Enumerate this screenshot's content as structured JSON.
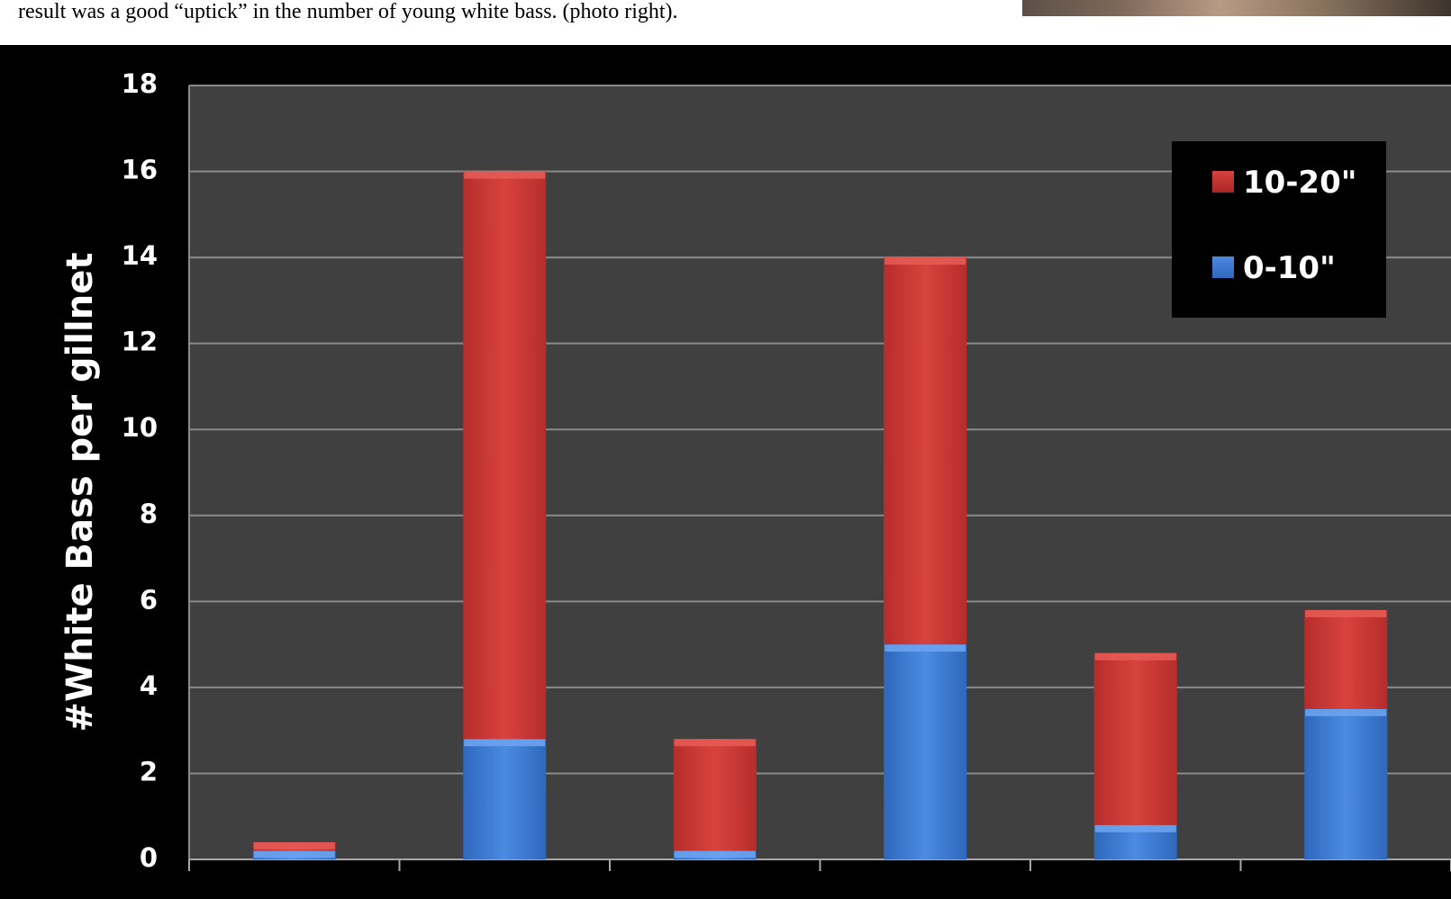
{
  "caption": {
    "text": "result was a good “uptick” in the number of young white bass. (photo right)."
  },
  "photo": {
    "name": "photo-right"
  },
  "colors": {
    "background": "#000000",
    "plot_background": "#404040",
    "gridline": "#8a8a8a",
    "series_10_20": "#cf3a35",
    "series_0_10": "#3f7ed6"
  },
  "chart_data": {
    "type": "bar",
    "stacked": true,
    "title": "",
    "xlabel": "",
    "ylabel": "#White Bass per gillnet",
    "ylim": [
      0,
      18
    ],
    "yticks": [
      "0",
      "2",
      "4",
      "6",
      "8",
      "10",
      "12",
      "14",
      "16",
      "18"
    ],
    "categories": [
      "",
      "",
      "",
      "",
      "",
      ""
    ],
    "series": [
      {
        "name": "0-10\"",
        "values": [
          0.2,
          2.8,
          0.2,
          5.0,
          0.8,
          3.5
        ],
        "color": "#3f7ed6"
      },
      {
        "name": "10-20\"",
        "values": [
          0.2,
          13.2,
          2.6,
          9.0,
          4.0,
          2.3
        ],
        "color": "#cf3a35"
      }
    ],
    "legend_position": "top-right",
    "legend_order": [
      "10-20\"",
      "0-10\""
    ],
    "grid": true
  }
}
